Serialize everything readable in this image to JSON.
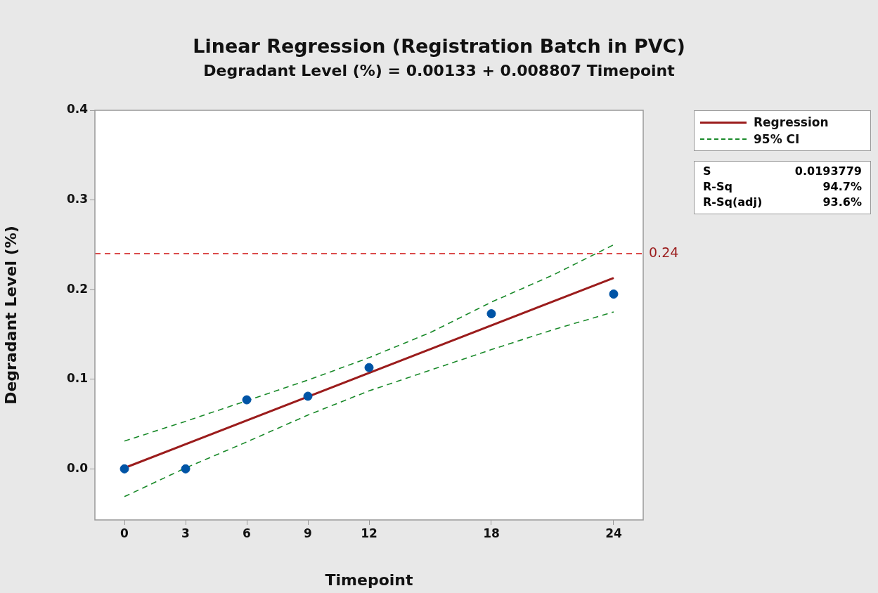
{
  "chart_data": {
    "type": "scatter",
    "title": "Linear Regression (Registration Batch in PVC)",
    "subtitle": "Degradant Level (%) = 0.00133 + 0.008807 Timepoint",
    "xlabel": "Timepoint",
    "ylabel": "Degradant Level (%)",
    "xlim": [
      -1.45,
      25.45
    ],
    "xticks": [
      0,
      3,
      6,
      9,
      12,
      18,
      24
    ],
    "ylim": [
      -0.057,
      0.4
    ],
    "yticks": [
      {
        "value": 0,
        "label": "0.0"
      },
      {
        "value": 0.1,
        "label": "0.1"
      },
      {
        "value": 0.2,
        "label": "0.2"
      },
      {
        "value": 0.3,
        "label": "0.3"
      },
      {
        "value": 0.4,
        "label": "0.4"
      }
    ],
    "grid": false,
    "legend": "top right",
    "marker": "circle",
    "series": [
      {
        "type": "scatter",
        "color": "#0054a6",
        "x": [
          0,
          3,
          6,
          9,
          12,
          18,
          24
        ],
        "values": [
          0.0,
          0.0,
          0.077,
          0.081,
          0.113,
          0.173,
          0.195
        ]
      },
      {
        "type": "line",
        "name": "Regression",
        "color": "#9b1c1c",
        "line_style": "solid",
        "marker": "none",
        "x": [
          0,
          24
        ],
        "values": [
          0.001,
          0.213
        ]
      },
      {
        "type": "line",
        "name": "95% CI",
        "color": "#1a8a2a",
        "line_style": "dashed",
        "marker": "none",
        "x": [
          0,
          3,
          6,
          9,
          12,
          15,
          18,
          21,
          24
        ],
        "values": [
          0.031,
          0.053,
          0.076,
          0.099,
          0.124,
          0.152,
          0.186,
          0.216,
          0.25
        ]
      },
      {
        "type": "line",
        "color": "#1a8a2a",
        "line_style": "dashed",
        "marker": "none",
        "x": [
          0,
          3,
          6,
          9,
          12,
          15,
          18,
          21,
          24
        ],
        "values": [
          -0.031,
          0.001,
          0.03,
          0.06,
          0.087,
          0.11,
          0.133,
          0.155,
          0.175
        ]
      }
    ],
    "ref_lines": [
      {
        "axis": "y",
        "value": 0.24,
        "label": "0.24",
        "color": "#d01010",
        "line_style": "dashed"
      }
    ],
    "annotations": [
      "S",
      "0.0193779",
      "R-Sq",
      "94.7%",
      "R-Sq(adj)",
      "93.6%"
    ]
  }
}
